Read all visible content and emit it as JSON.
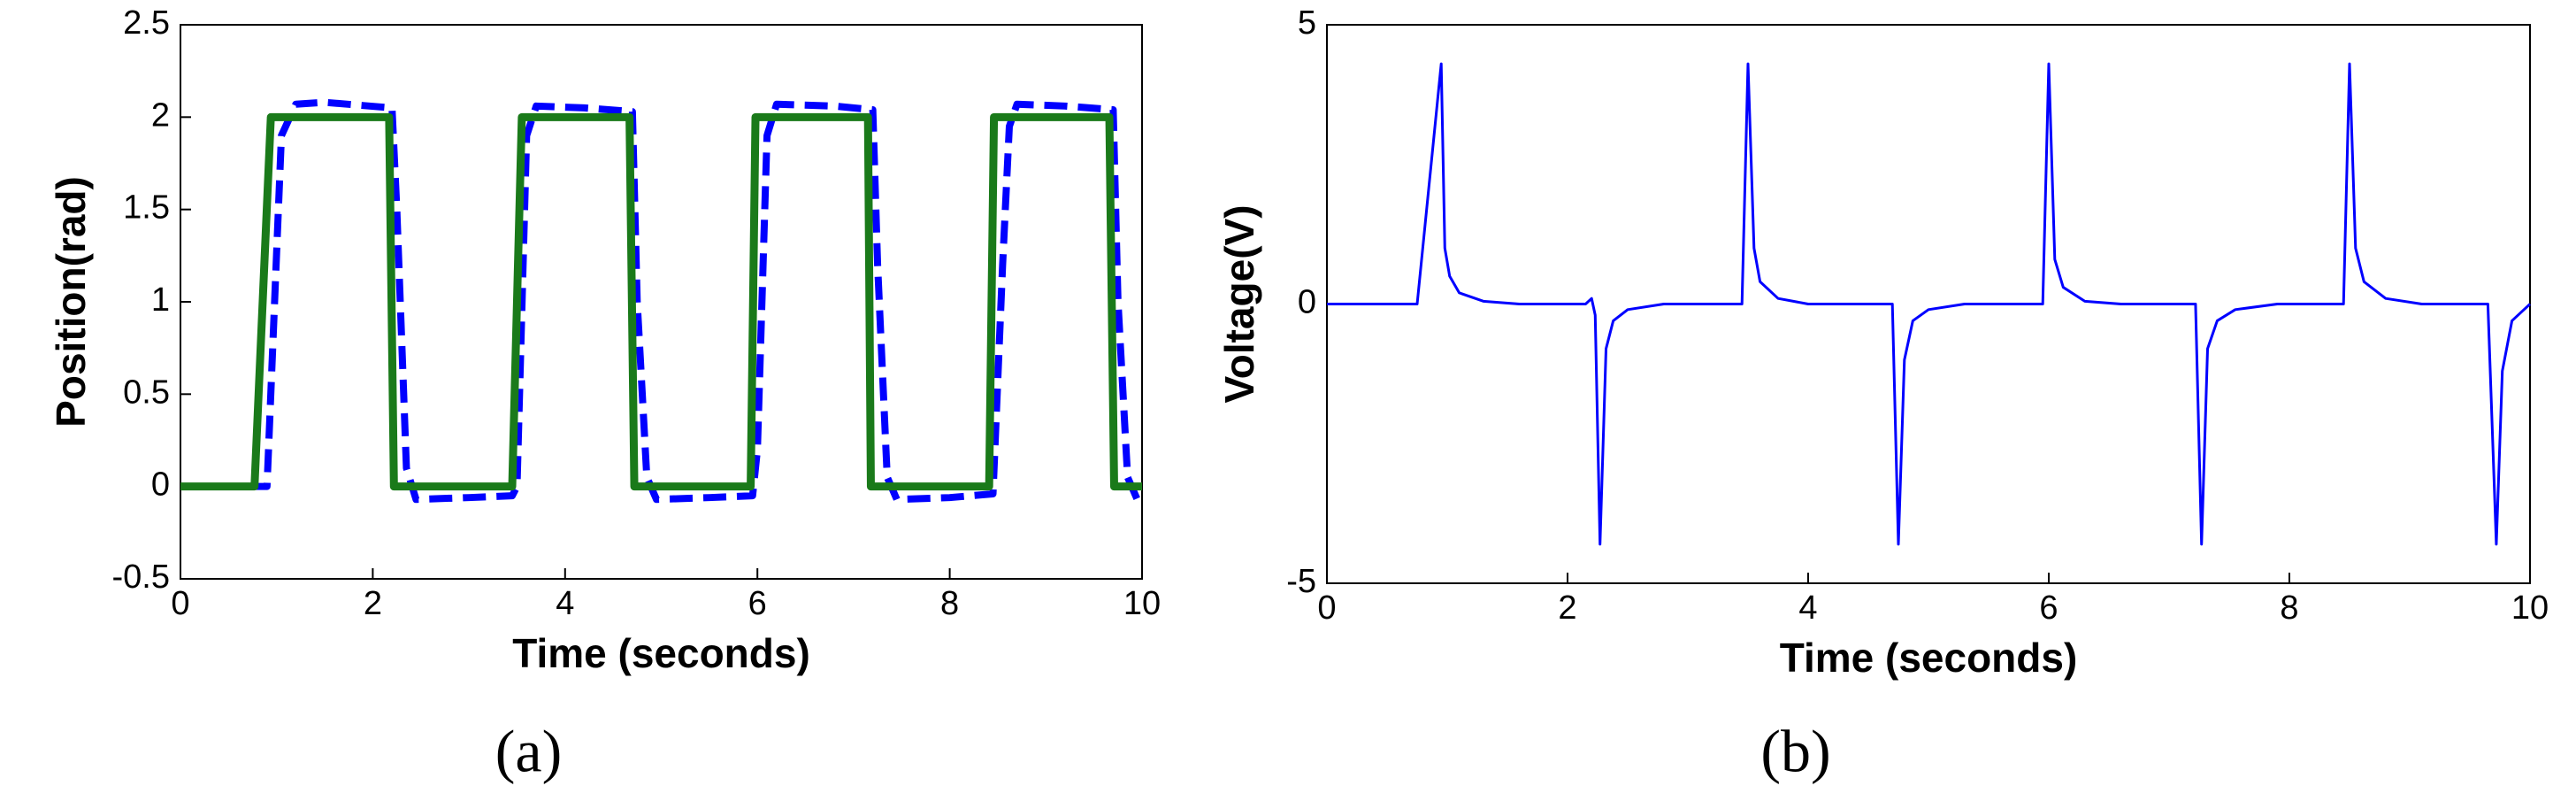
{
  "chart_data": [
    {
      "type": "line",
      "caption": "(a)",
      "xlabel": "Time (seconds)",
      "ylabel": "Position(rad)",
      "xlim": [
        0,
        10
      ],
      "xticks": [
        0,
        2,
        4,
        6,
        8,
        10
      ],
      "ylim": [
        -0.5,
        2.5
      ],
      "yticks": [
        -0.5,
        0,
        0.5,
        1,
        1.5,
        2,
        2.5
      ],
      "series": [
        {
          "color": "#0000ff",
          "linestyle": "dashed",
          "x": [
            0,
            0.9,
            1.05,
            1.2,
            1.5,
            2.2,
            2.25,
            2.35,
            2.45,
            3.0,
            3.45,
            3.5,
            3.6,
            3.7,
            4.2,
            4.7,
            4.75,
            4.85,
            4.95,
            5.5,
            5.95,
            6.0,
            6.1,
            6.2,
            6.8,
            7.2,
            7.25,
            7.35,
            7.45,
            8.0,
            8.45,
            8.55,
            8.62,
            8.7,
            9.2,
            9.7,
            9.75,
            9.85,
            9.95,
            10
          ],
          "values": [
            0,
            0,
            1.9,
            2.07,
            2.08,
            2.05,
            1.5,
            0.1,
            -0.07,
            -0.06,
            -0.05,
            0,
            1.9,
            2.06,
            2.05,
            2.03,
            1.0,
            0.05,
            -0.07,
            -0.06,
            -0.05,
            0.2,
            1.9,
            2.07,
            2.06,
            2.04,
            1.2,
            0.05,
            -0.07,
            -0.06,
            -0.04,
            1.2,
            1.95,
            2.07,
            2.06,
            2.04,
            1.0,
            0.05,
            -0.07,
            -0.07
          ]
        },
        {
          "color": "#1a7a1a",
          "linestyle": "solid",
          "x": [
            0,
            0.77,
            0.94,
            2.17,
            2.22,
            3.45,
            3.55,
            4.67,
            4.72,
            5.93,
            5.98,
            7.15,
            7.18,
            8.41,
            8.46,
            9.66,
            9.71,
            10
          ],
          "values": [
            0,
            0,
            2,
            2,
            0,
            0,
            2,
            2,
            0,
            0,
            2,
            2,
            0,
            0,
            2,
            2,
            0,
            0
          ]
        }
      ]
    },
    {
      "type": "line",
      "caption": "(b)",
      "xlabel": "Time (seconds)",
      "ylabel": "Voltage(V)",
      "xlim": [
        0,
        10
      ],
      "xticks": [
        0,
        2,
        4,
        6,
        8,
        10
      ],
      "ylim": [
        -5,
        5
      ],
      "yticks": [
        -5,
        0,
        5
      ],
      "series": [
        {
          "color": "#0000ff",
          "linestyle": "solid",
          "x": [
            0,
            0.75,
            0.95,
            0.98,
            1.02,
            1.1,
            1.3,
            1.6,
            2.15,
            2.2,
            2.23,
            2.27,
            2.32,
            2.38,
            2.5,
            2.8,
            3.45,
            3.5,
            3.55,
            3.6,
            3.75,
            4.0,
            4.7,
            4.75,
            4.8,
            4.87,
            5.0,
            5.3,
            5.95,
            6.0,
            6.05,
            6.12,
            6.3,
            6.6,
            7.22,
            7.27,
            7.32,
            7.4,
            7.55,
            7.9,
            8.45,
            8.5,
            8.55,
            8.62,
            8.8,
            9.1,
            9.65,
            9.72,
            9.77,
            9.85,
            9.95,
            10
          ],
          "values": [
            0,
            0,
            4.3,
            1.0,
            0.5,
            0.2,
            0.05,
            0,
            0,
            0.1,
            -0.2,
            -4.3,
            -0.8,
            -0.3,
            -0.1,
            0,
            0,
            4.3,
            1.0,
            0.4,
            0.1,
            0,
            0,
            -4.3,
            -1,
            -0.3,
            -0.1,
            0,
            0,
            4.3,
            0.8,
            0.3,
            0.05,
            0,
            0,
            -4.3,
            -0.8,
            -0.3,
            -0.1,
            0,
            0,
            4.3,
            1.0,
            0.4,
            0.1,
            0,
            0,
            -4.3,
            -1.2,
            -0.3,
            -0.1,
            0
          ]
        }
      ]
    }
  ]
}
